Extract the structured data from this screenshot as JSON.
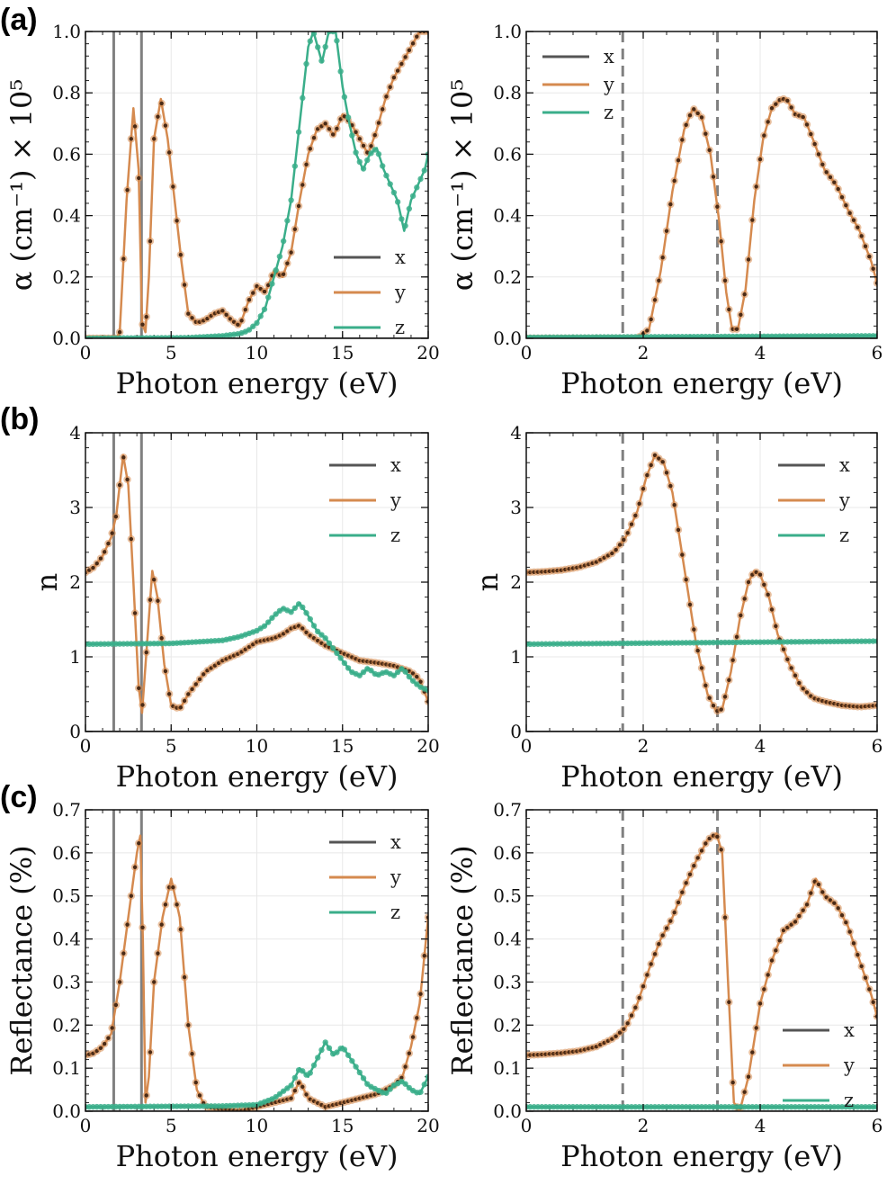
{
  "figure": {
    "colors": {
      "x": "#555555",
      "y": "#d58a4f",
      "z": "#3aae8a",
      "marker": "#4a2a15",
      "grid": "#e8e8e8",
      "vline": "#808080"
    },
    "panel_labels": [
      "(a)",
      "(b)",
      "(c)"
    ]
  },
  "chart_data": [
    {
      "id": "a-left",
      "type": "line",
      "panel": "(a)",
      "xlabel": "Photon energy (eV)",
      "ylabel": "α (cm⁻¹) × 10⁵",
      "xlim": [
        0,
        20
      ],
      "ylim": [
        0,
        1.0
      ],
      "xticks": [
        0,
        5,
        10,
        15,
        20
      ],
      "yticks": [
        0.0,
        0.2,
        0.4,
        0.6,
        0.8,
        1.0
      ],
      "ytick_labels": [
        "0.0",
        "0.2",
        "0.4",
        "0.6",
        "0.8",
        "1.0"
      ],
      "vlines": [
        1.65,
        3.27
      ],
      "vline_style": "solid",
      "legend": [
        "x",
        "y",
        "z"
      ],
      "legend_position": "lower-right",
      "series": [
        {
          "name": "x",
          "x": [
            0,
            20
          ],
          "y": [
            0,
            0
          ]
        },
        {
          "name": "y",
          "x": [
            0,
            1.8,
            2.0,
            2.4,
            2.8,
            3.1,
            3.3,
            3.5,
            3.7,
            4.0,
            4.4,
            4.8,
            5.2,
            5.6,
            6.0,
            6.5,
            7.0,
            7.5,
            8.0,
            8.5,
            9.0,
            9.5,
            10.0,
            10.5,
            11.0,
            11.5,
            12.0,
            12.5,
            13.0,
            13.5,
            14.0,
            14.5,
            15.0,
            15.5,
            16.0,
            16.5,
            17.0,
            17.5,
            18.0,
            18.5,
            19.0,
            19.5,
            20.0
          ],
          "y": [
            0,
            0,
            0.02,
            0.45,
            0.75,
            0.55,
            0.05,
            0.02,
            0.2,
            0.65,
            0.78,
            0.65,
            0.45,
            0.25,
            0.08,
            0.05,
            0.06,
            0.08,
            0.09,
            0.06,
            0.04,
            0.12,
            0.17,
            0.15,
            0.22,
            0.2,
            0.28,
            0.45,
            0.6,
            0.68,
            0.7,
            0.66,
            0.73,
            0.7,
            0.65,
            0.6,
            0.68,
            0.78,
            0.85,
            0.9,
            0.95,
            1.0,
            1.0
          ]
        },
        {
          "name": "z",
          "x": [
            0,
            6,
            8,
            9,
            9.5,
            10,
            10.5,
            11,
            11.5,
            12,
            12.5,
            13,
            13.3,
            13.8,
            14.2,
            14.6,
            15,
            15.4,
            15.8,
            16.2,
            16.6,
            17,
            17.4,
            17.8,
            18.2,
            18.6,
            19,
            19.4,
            19.8,
            20
          ],
          "y": [
            0,
            0.002,
            0.008,
            0.015,
            0.025,
            0.05,
            0.1,
            0.2,
            0.3,
            0.45,
            0.7,
            0.95,
            1.0,
            0.9,
            1.0,
            1.0,
            0.82,
            0.7,
            0.6,
            0.55,
            0.6,
            0.62,
            0.55,
            0.5,
            0.45,
            0.35,
            0.45,
            0.5,
            0.55,
            0.6
          ]
        }
      ]
    },
    {
      "id": "a-right",
      "type": "line",
      "panel": "(a)",
      "xlabel": "Photon energy (eV)",
      "ylabel": "α (cm⁻¹) × 10⁵",
      "xlim": [
        0,
        6
      ],
      "ylim": [
        0,
        1.0
      ],
      "xticks": [
        0,
        2,
        4,
        6
      ],
      "yticks": [
        0.0,
        0.2,
        0.4,
        0.6,
        0.8,
        1.0
      ],
      "ytick_labels": [
        "0.0",
        "0.2",
        "0.4",
        "0.6",
        "0.8",
        "1.0"
      ],
      "vlines": [
        1.65,
        3.27
      ],
      "vline_style": "dashed",
      "legend": [
        "x",
        "y",
        "z"
      ],
      "legend_position": "top-left",
      "series": [
        {
          "name": "x",
          "x": [
            0,
            6
          ],
          "y": [
            0,
            0
          ]
        },
        {
          "name": "y",
          "x": [
            0,
            1.7,
            1.9,
            2.1,
            2.3,
            2.5,
            2.7,
            2.85,
            3.0,
            3.15,
            3.3,
            3.42,
            3.52,
            3.62,
            3.75,
            3.9,
            4.05,
            4.2,
            4.35,
            4.45,
            4.6,
            4.75,
            4.9,
            5.1,
            5.3,
            5.5,
            5.7,
            5.9,
            6.0
          ],
          "y": [
            0,
            0,
            0,
            0.03,
            0.22,
            0.48,
            0.68,
            0.75,
            0.72,
            0.6,
            0.38,
            0.15,
            0.03,
            0.03,
            0.16,
            0.45,
            0.65,
            0.75,
            0.78,
            0.78,
            0.73,
            0.72,
            0.65,
            0.55,
            0.5,
            0.42,
            0.35,
            0.25,
            0.18
          ]
        },
        {
          "name": "z",
          "x": [
            0,
            6
          ],
          "y": [
            0.003,
            0.008
          ]
        }
      ]
    },
    {
      "id": "b-left",
      "type": "line",
      "panel": "(b)",
      "xlabel": "Photon energy (eV)",
      "ylabel": "n",
      "xlim": [
        0,
        20
      ],
      "ylim": [
        0,
        4
      ],
      "xticks": [
        0,
        5,
        10,
        15,
        20
      ],
      "yticks": [
        0,
        1,
        2,
        3,
        4
      ],
      "ytick_labels": [
        "0",
        "1",
        "2",
        "3",
        "4"
      ],
      "vlines": [
        1.65,
        3.27
      ],
      "vline_style": "solid",
      "legend": [
        "x",
        "y",
        "z"
      ],
      "legend_position": "top-right",
      "series": [
        {
          "name": "x",
          "x": [
            0,
            20
          ],
          "y": [
            0,
            0
          ]
        },
        {
          "name": "y",
          "x": [
            0,
            0.5,
            1.0,
            1.5,
            1.8,
            2.0,
            2.2,
            2.5,
            2.8,
            3.1,
            3.3,
            3.6,
            3.9,
            4.2,
            4.6,
            5.0,
            5.5,
            6.0,
            7.0,
            8.0,
            9.0,
            10.0,
            11.0,
            11.5,
            12.0,
            12.5,
            13.0,
            14.0,
            15.0,
            16.0,
            17.0,
            18.0,
            19.0,
            19.5,
            20.0
          ],
          "y": [
            2.13,
            2.2,
            2.35,
            2.6,
            2.9,
            3.3,
            3.7,
            3.3,
            2.0,
            0.6,
            0.25,
            1.2,
            2.15,
            1.8,
            0.9,
            0.35,
            0.3,
            0.5,
            0.8,
            0.95,
            1.05,
            1.2,
            1.25,
            1.3,
            1.38,
            1.42,
            1.3,
            1.15,
            1.05,
            0.95,
            0.92,
            0.88,
            0.8,
            0.7,
            0.4
          ]
        },
        {
          "name": "z",
          "x": [
            0,
            5,
            8,
            9,
            10,
            10.5,
            11,
            11.5,
            12,
            12.5,
            13,
            13.5,
            14,
            14.5,
            15,
            15.5,
            16,
            16.5,
            17,
            17.5,
            18,
            18.5,
            19,
            19.5,
            20
          ],
          "y": [
            1.17,
            1.18,
            1.22,
            1.27,
            1.35,
            1.42,
            1.55,
            1.65,
            1.6,
            1.72,
            1.55,
            1.35,
            1.25,
            1.1,
            0.95,
            0.8,
            0.75,
            0.85,
            0.75,
            0.8,
            0.75,
            0.85,
            0.7,
            0.6,
            0.55
          ]
        }
      ]
    },
    {
      "id": "b-right",
      "type": "line",
      "panel": "(b)",
      "xlabel": "Photon energy (eV)",
      "ylabel": "n",
      "xlim": [
        0,
        6
      ],
      "ylim": [
        0,
        4
      ],
      "xticks": [
        0,
        2,
        4,
        6
      ],
      "yticks": [
        0,
        1,
        2,
        3,
        4
      ],
      "ytick_labels": [
        "0",
        "1",
        "2",
        "3",
        "4"
      ],
      "vlines": [
        1.65,
        3.27
      ],
      "vline_style": "dashed",
      "legend": [
        "x",
        "y",
        "z"
      ],
      "legend_position": "top-right",
      "series": [
        {
          "name": "x",
          "x": [
            0,
            6
          ],
          "y": [
            0,
            0
          ]
        },
        {
          "name": "y",
          "x": [
            0,
            0.3,
            0.6,
            0.9,
            1.2,
            1.5,
            1.7,
            1.9,
            2.05,
            2.2,
            2.35,
            2.5,
            2.7,
            2.9,
            3.1,
            3.25,
            3.35,
            3.5,
            3.65,
            3.8,
            3.9,
            4.0,
            4.15,
            4.3,
            4.5,
            4.7,
            4.9,
            5.1,
            5.4,
            5.7,
            6.0
          ],
          "y": [
            2.13,
            2.14,
            2.16,
            2.2,
            2.27,
            2.4,
            2.6,
            2.95,
            3.4,
            3.7,
            3.6,
            3.2,
            2.2,
            1.2,
            0.5,
            0.27,
            0.3,
            0.8,
            1.5,
            2.0,
            2.15,
            2.1,
            1.8,
            1.3,
            0.9,
            0.6,
            0.45,
            0.4,
            0.35,
            0.33,
            0.35
          ]
        },
        {
          "name": "z",
          "x": [
            0,
            6
          ],
          "y": [
            1.17,
            1.21
          ]
        }
      ]
    },
    {
      "id": "c-left",
      "type": "line",
      "panel": "(c)",
      "xlabel": "Photon energy (eV)",
      "ylabel": "Reflectance (%)",
      "xlim": [
        0,
        20
      ],
      "ylim": [
        0,
        0.7
      ],
      "xticks": [
        0,
        5,
        10,
        15,
        20
      ],
      "yticks": [
        0.0,
        0.1,
        0.2,
        0.3,
        0.4,
        0.5,
        0.6,
        0.7
      ],
      "ytick_labels": [
        "0.0",
        "0.1",
        "0.2",
        "0.3",
        "0.4",
        "0.5",
        "0.6",
        "0.7"
      ],
      "vlines": [
        1.65,
        3.27
      ],
      "vline_style": "solid",
      "legend": [
        "x",
        "y",
        "z"
      ],
      "legend_position": "top-right",
      "series": [
        {
          "name": "x",
          "x": [
            0,
            20
          ],
          "y": [
            0,
            0
          ]
        },
        {
          "name": "y",
          "x": [
            0,
            0.5,
            1.0,
            1.5,
            2.0,
            2.5,
            3.0,
            3.2,
            3.35,
            3.5,
            3.7,
            4.0,
            4.5,
            5.0,
            5.5,
            6.0,
            6.5,
            7.0,
            9.0,
            10.0,
            11.0,
            12.0,
            12.5,
            13.0,
            14.0,
            15.0,
            16.0,
            17.0,
            18.0,
            18.5,
            19.0,
            19.5,
            20.0
          ],
          "y": [
            0.13,
            0.135,
            0.15,
            0.18,
            0.3,
            0.45,
            0.6,
            0.64,
            0.4,
            0.02,
            0.08,
            0.3,
            0.45,
            0.54,
            0.45,
            0.2,
            0.05,
            0.01,
            0.0,
            0.01,
            0.02,
            0.03,
            0.07,
            0.03,
            0.01,
            0.02,
            0.03,
            0.04,
            0.06,
            0.08,
            0.15,
            0.25,
            0.45
          ]
        },
        {
          "name": "z",
          "x": [
            0,
            8,
            10,
            11,
            12,
            12.5,
            13,
            13.5,
            14,
            14.5,
            15,
            15.5,
            16,
            16.5,
            17,
            17.5,
            18,
            18.5,
            19,
            19.5,
            20
          ],
          "y": [
            0.01,
            0.012,
            0.015,
            0.03,
            0.06,
            0.1,
            0.08,
            0.12,
            0.16,
            0.13,
            0.15,
            0.12,
            0.09,
            0.06,
            0.05,
            0.04,
            0.06,
            0.07,
            0.05,
            0.04,
            0.08
          ]
        }
      ]
    },
    {
      "id": "c-right",
      "type": "line",
      "panel": "(c)",
      "xlabel": "Photon energy (eV)",
      "ylabel": "Reflectance (%)",
      "xlim": [
        0,
        6
      ],
      "ylim": [
        0,
        0.7
      ],
      "xticks": [
        0,
        2,
        4,
        6
      ],
      "yticks": [
        0.0,
        0.1,
        0.2,
        0.3,
        0.4,
        0.5,
        0.6,
        0.7
      ],
      "ytick_labels": [
        "0.0",
        "0.1",
        "0.2",
        "0.3",
        "0.4",
        "0.5",
        "0.6",
        "0.7"
      ],
      "vlines": [
        1.65,
        3.27
      ],
      "vline_style": "dashed",
      "legend": [
        "x",
        "y",
        "z"
      ],
      "legend_position": "lower-right",
      "series": [
        {
          "name": "x",
          "x": [
            0,
            6
          ],
          "y": [
            0,
            0
          ]
        },
        {
          "name": "y",
          "x": [
            0,
            0.3,
            0.6,
            0.9,
            1.2,
            1.5,
            1.7,
            1.9,
            2.1,
            2.3,
            2.5,
            2.7,
            2.9,
            3.1,
            3.25,
            3.35,
            3.45,
            3.55,
            3.65,
            3.8,
            4.0,
            4.2,
            4.4,
            4.6,
            4.8,
            4.95,
            5.1,
            5.3,
            5.5,
            5.7,
            5.9,
            6.0
          ],
          "y": [
            0.13,
            0.132,
            0.135,
            0.14,
            0.15,
            0.17,
            0.195,
            0.25,
            0.33,
            0.4,
            0.45,
            0.52,
            0.58,
            0.63,
            0.645,
            0.6,
            0.3,
            0.02,
            0.0,
            0.08,
            0.25,
            0.35,
            0.42,
            0.44,
            0.48,
            0.54,
            0.5,
            0.48,
            0.43,
            0.35,
            0.27,
            0.22
          ]
        },
        {
          "name": "z",
          "x": [
            0,
            6
          ],
          "y": [
            0.01,
            0.01
          ]
        }
      ]
    }
  ]
}
